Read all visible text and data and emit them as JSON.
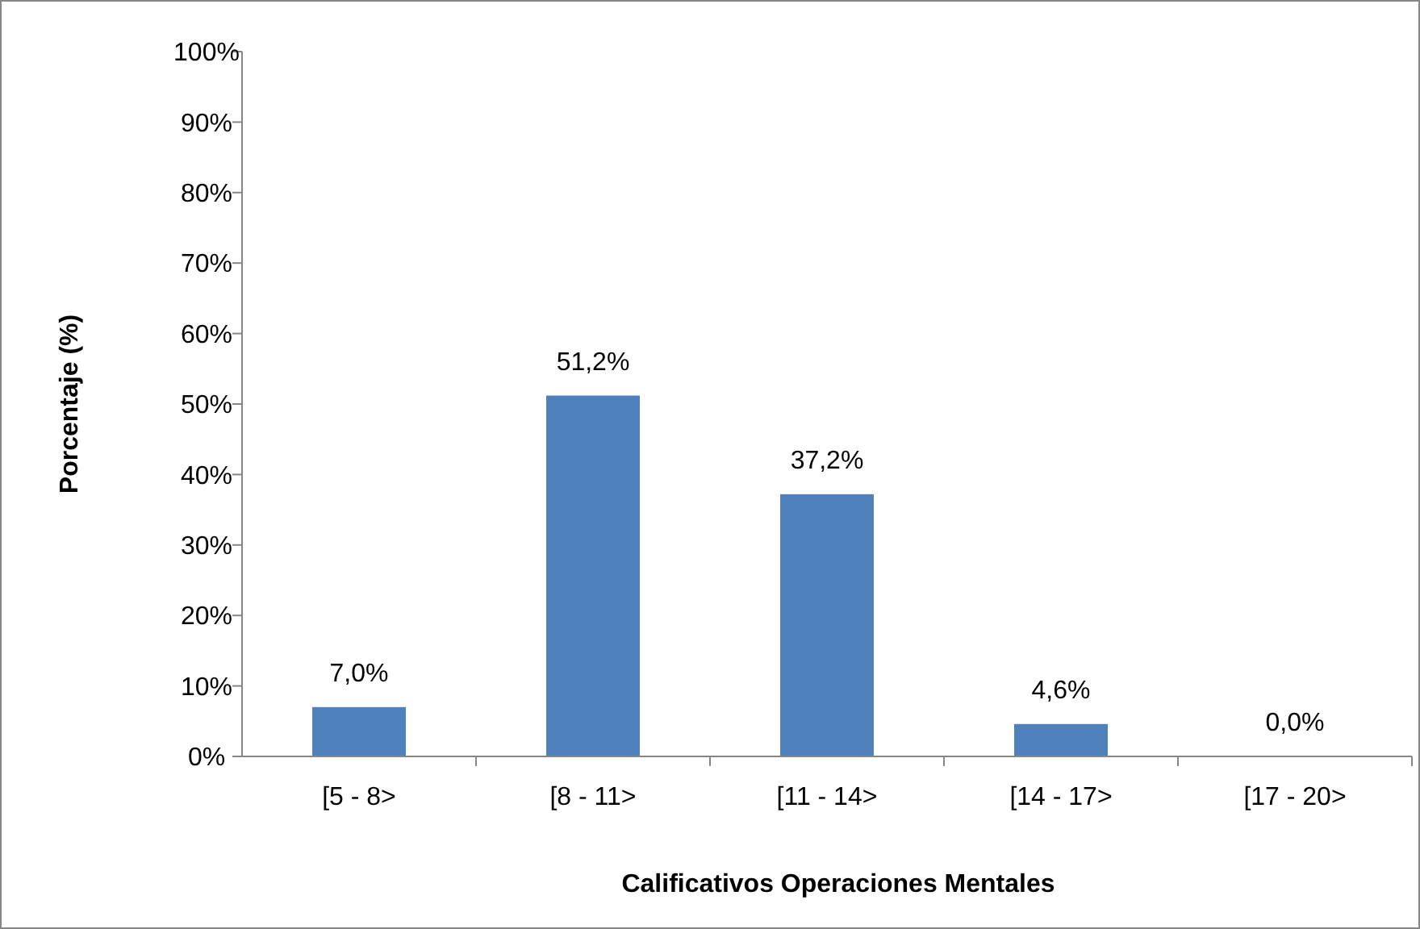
{
  "chart_data": {
    "type": "bar",
    "xlabel": "Calificativos Operaciones Mentales",
    "ylabel": "Porcentaje (%)",
    "categories": [
      "[5 - 8>",
      "[8 - 11>",
      "[11 - 14>",
      "[14 - 17>",
      "[17 - 20>"
    ],
    "values": [
      7.0,
      51.2,
      37.2,
      4.6,
      0.0
    ],
    "value_labels": [
      "7,0%",
      "51,2%",
      "37,2%",
      "4,6%",
      "0,0%"
    ],
    "color": "#4f81bd",
    "ylim": [
      0,
      100
    ],
    "yticks": [
      {
        "value": 0,
        "label": "0%"
      },
      {
        "value": 10,
        "label": "10%"
      },
      {
        "value": 20,
        "label": "20%"
      },
      {
        "value": 30,
        "label": "30%"
      },
      {
        "value": 40,
        "label": "40%"
      },
      {
        "value": 50,
        "label": "50%"
      },
      {
        "value": 60,
        "label": "60%"
      },
      {
        "value": 70,
        "label": "70%"
      },
      {
        "value": 80,
        "label": "80%"
      },
      {
        "value": 90,
        "label": "90%"
      },
      {
        "value": 100,
        "label": "100%"
      }
    ],
    "grid": false
  }
}
